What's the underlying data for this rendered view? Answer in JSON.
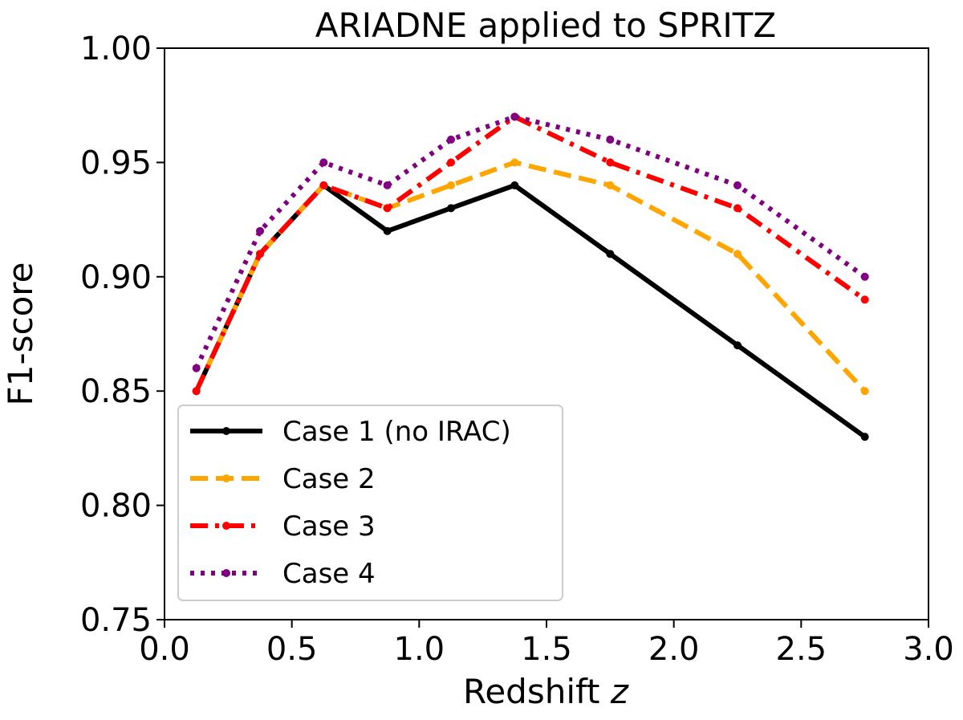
{
  "chart_data": {
    "type": "line",
    "title": "ARIADNE applied to SPRITZ",
    "xlabel": "Redshift",
    "xlabel_var": "z",
    "ylabel": "F1-score",
    "xlim": [
      0.0,
      3.0
    ],
    "ylim": [
      0.75,
      1.0
    ],
    "xticks": [
      "0.0",
      "0.5",
      "1.0",
      "1.5",
      "2.0",
      "2.5",
      "3.0"
    ],
    "yticks": [
      "0.75",
      "0.80",
      "0.85",
      "0.90",
      "0.95",
      "1.00"
    ],
    "grid": false,
    "legend_position": "lower-left",
    "x": [
      0.125,
      0.375,
      0.625,
      0.875,
      1.125,
      1.375,
      1.75,
      2.25,
      2.75
    ],
    "series": [
      {
        "name": "Case 1 (no IRAC)",
        "color": "#000000",
        "style": "solid",
        "values": [
          0.85,
          0.91,
          0.94,
          0.92,
          0.93,
          0.94,
          0.91,
          0.87,
          0.83
        ]
      },
      {
        "name": "Case 2",
        "color": "#ffa500",
        "style": "dashed",
        "values": [
          0.85,
          0.91,
          0.94,
          0.93,
          0.94,
          0.95,
          0.94,
          0.91,
          0.85
        ]
      },
      {
        "name": "Case 3",
        "color": "#ff0000",
        "style": "dashdot",
        "values": [
          0.85,
          0.91,
          0.94,
          0.93,
          0.95,
          0.97,
          0.95,
          0.93,
          0.89
        ]
      },
      {
        "name": "Case 4",
        "color": "#800080",
        "style": "dotted",
        "values": [
          0.86,
          0.92,
          0.95,
          0.94,
          0.96,
          0.97,
          0.96,
          0.94,
          0.9
        ]
      }
    ]
  }
}
